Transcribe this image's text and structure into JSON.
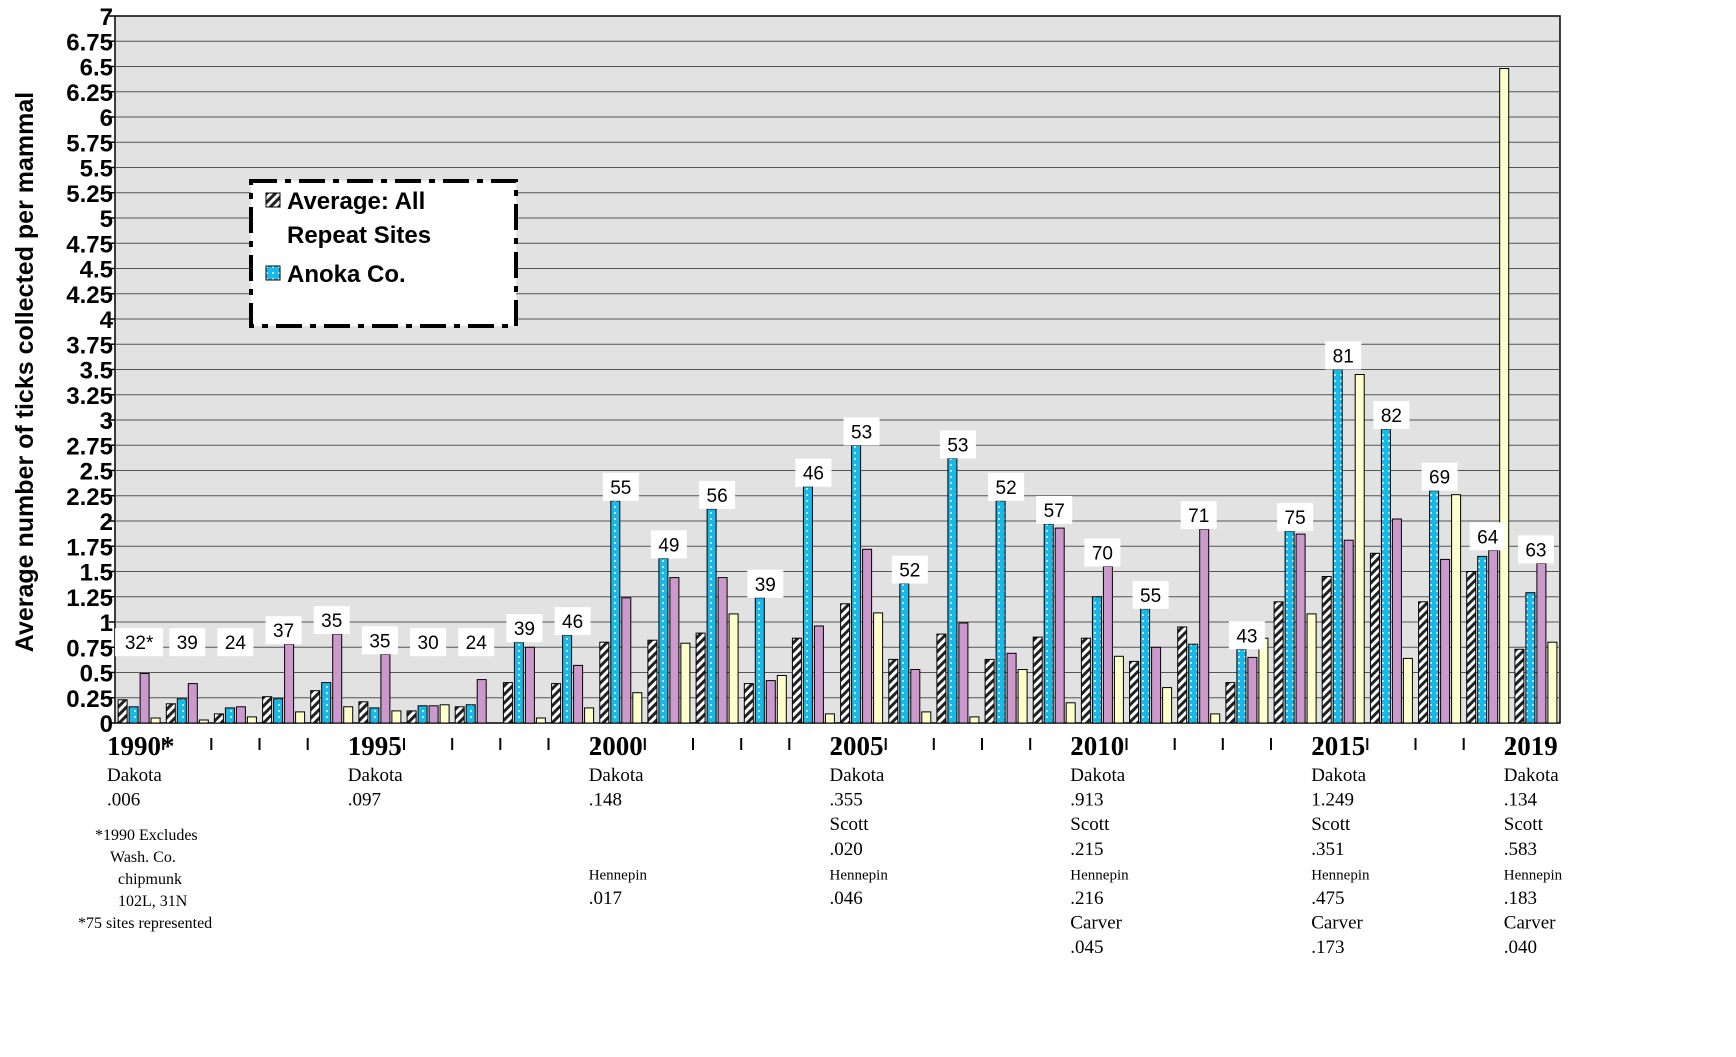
{
  "chart_data": {
    "type": "bar",
    "ylabel": "Average number of ticks collected per mammal",
    "ylim": [
      0,
      7
    ],
    "yticks": [
      "0",
      "0.25",
      "0.5",
      "0.75",
      "1",
      "1.25",
      "1.5",
      "1.75",
      "2",
      "2.25",
      "2.5",
      "2.75",
      "3",
      "3.25",
      "3.5",
      "3.75",
      "4",
      "4.25",
      "4.5",
      "4.75",
      "5",
      "5.25",
      "5.5",
      "5.75",
      "6",
      "6.25",
      "6.5",
      "6.75",
      "7"
    ],
    "grid": true,
    "legend_placement": "upper-left",
    "legend": [
      {
        "label": "Average: All Repeat Sites",
        "pattern": "diagonal-stripes"
      },
      {
        "label": "Anoka Co.",
        "pattern": "blue-dots"
      }
    ],
    "x": [
      1990,
      1991,
      1992,
      1993,
      1994,
      1995,
      1996,
      1997,
      1998,
      1999,
      2000,
      2001,
      2002,
      2003,
      2004,
      2005,
      2006,
      2007,
      2008,
      2009,
      2010,
      2011,
      2012,
      2013,
      2014,
      2015,
      2016,
      2017,
      2018,
      2019
    ],
    "series": [
      {
        "name": "Average: All Repeat Sites",
        "values": [
          0.23,
          0.19,
          0.09,
          0.26,
          0.32,
          0.21,
          0.12,
          0.16,
          0.4,
          0.39,
          0.8,
          0.82,
          0.89,
          0.39,
          0.84,
          1.18,
          0.63,
          0.88,
          0.63,
          0.85,
          0.84,
          0.61,
          0.95,
          0.4,
          1.2,
          1.45,
          1.68,
          1.2,
          1.5,
          0.73
        ]
      },
      {
        "name": "Anoka Co.",
        "values": [
          0.16,
          0.24,
          0.15,
          0.24,
          0.4,
          0.15,
          0.17,
          0.18,
          0.8,
          0.87,
          2.2,
          1.63,
          2.12,
          1.24,
          2.34,
          2.75,
          1.38,
          2.62,
          2.2,
          1.97,
          1.25,
          1.13,
          0.78,
          0.73,
          1.9,
          3.5,
          2.91,
          2.3,
          1.65,
          1.29
        ]
      },
      {
        "values": [
          0.49,
          0.39,
          0.16,
          0.78,
          0.88,
          0.68,
          0.17,
          0.43,
          0.75,
          0.57,
          1.24,
          1.44,
          1.44,
          0.42,
          0.96,
          1.72,
          0.53,
          0.99,
          0.69,
          1.93,
          1.55,
          0.75,
          1.92,
          0.65,
          1.87,
          1.81,
          2.02,
          1.62,
          1.71,
          1.58
        ]
      },
      {
        "values": [
          0.05,
          0.03,
          0.06,
          0.11,
          0.16,
          0.12,
          0.18,
          0,
          0.05,
          0.15,
          0.3,
          0.79,
          1.08,
          0.47,
          0.09,
          1.09,
          0.11,
          0.06,
          0.53,
          0.2,
          0.66,
          0.35,
          0.09,
          0.84,
          1.08,
          3.45,
          0.64,
          2.26,
          6.48,
          0.8
        ]
      }
    ],
    "site_counts": [
      "32*",
      "39",
      "24",
      "37",
      "35",
      "35",
      "30",
      "24",
      "39",
      "46",
      "55",
      "49",
      "56",
      "39",
      "46",
      "53",
      "52",
      "53",
      "52",
      "57",
      "70",
      "55",
      "71",
      "43",
      "75",
      "81",
      "82",
      "69",
      "64",
      "63"
    ],
    "year_labels": [
      {
        "idx": 0,
        "label": "1990*"
      },
      {
        "idx": 5,
        "label": "1995"
      },
      {
        "idx": 10,
        "label": "2000"
      },
      {
        "idx": 15,
        "label": "2005"
      },
      {
        "idx": 20,
        "label": "2010"
      },
      {
        "idx": 25,
        "label": "2015"
      },
      {
        "idx": 29,
        "label": "2019"
      }
    ],
    "annotations": [
      {
        "idx": 0,
        "lines": [
          "Dakota",
          ".006"
        ]
      },
      {
        "idx": 5,
        "lines": [
          "Dakota",
          ".097"
        ]
      },
      {
        "idx": 10,
        "lines": [
          "Dakota",
          ".148",
          "",
          "",
          "Hennepin",
          ".017"
        ]
      },
      {
        "idx": 15,
        "lines": [
          "Dakota",
          ".355",
          "Scott",
          ".020",
          "Hennepin",
          ".046"
        ]
      },
      {
        "idx": 20,
        "lines": [
          "Dakota",
          ".913",
          "Scott",
          ".215",
          "Hennepin",
          ".216",
          "Carver",
          ".045"
        ]
      },
      {
        "idx": 25,
        "lines": [
          "Dakota",
          "1.249",
          "Scott",
          ".351",
          "Hennepin",
          ".475",
          "Carver",
          ".173"
        ]
      },
      {
        "idx": 29,
        "lines": [
          "Dakota",
          ".134",
          "Scott",
          ".583",
          "Hennepin",
          ".183",
          "Carver",
          ".040"
        ]
      }
    ],
    "footnotes": [
      "*1990 Excludes",
      "Wash. Co.",
      "chipmunk",
      "102L, 31N",
      "*75 sites represented"
    ],
    "colors": {
      "plot_bg": "#e2e2e2",
      "grid": "#555555",
      "avg": "#222222",
      "anoka": "#1ab8e6",
      "third": "#cc99cc",
      "fourth": "#ffffcc"
    }
  }
}
